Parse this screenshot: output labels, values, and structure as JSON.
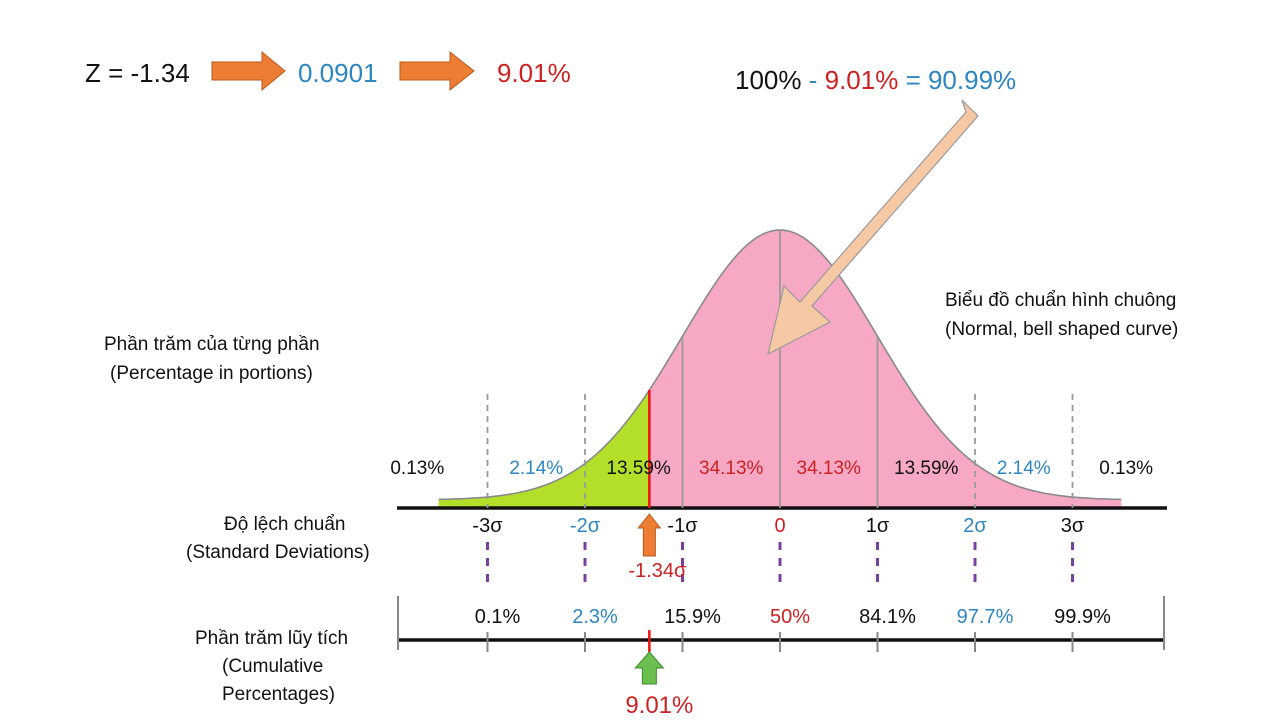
{
  "colors": {
    "black": "#111111",
    "blue": "#2e86c1",
    "red": "#cc2222",
    "pink": "#f7a8c4",
    "green": "#b2e02a",
    "purple": "#7b3fa0",
    "orange": "#ee7d34",
    "peach": "#f6c9a4",
    "arrow_green": "#6bbf4e"
  },
  "top_formula": {
    "z_text": "Z = -1.34",
    "prob_text": "0.0901",
    "percent_text": "9.01%"
  },
  "complement": {
    "part1": "100%",
    "part2": " - ",
    "part3": "9.01%",
    "part4": " = 90.99%"
  },
  "labels": {
    "bell_vi": "Biểu đồ chuẩn hình chuông",
    "bell_en": "(Normal, bell shaped curve)",
    "portion_vi": "Phần trăm của từng phần",
    "portion_en": "(Percentage in portions)",
    "sd_vi": "Độ lệch chuẩn",
    "sd_en": "(Standard Deviations)",
    "cum_vi": "Phần trăm lũy tích",
    "cum_en1": "(Cumulative",
    "cum_en2": "Percentages)"
  },
  "chart_data": {
    "type": "area",
    "distribution": "normal",
    "x_range": [
      -3.5,
      3.5
    ],
    "sd_ticks": [
      {
        "value": -3,
        "label": "-3σ",
        "color": "black"
      },
      {
        "value": -2,
        "label": "-2σ",
        "color": "blue"
      },
      {
        "value": -1,
        "label": "-1σ",
        "color": "black"
      },
      {
        "value": 0,
        "label": "0",
        "color": "red"
      },
      {
        "value": 1,
        "label": "1σ",
        "color": "black"
      },
      {
        "value": 2,
        "label": "2σ",
        "color": "blue"
      },
      {
        "value": 3,
        "label": "3σ",
        "color": "black"
      }
    ],
    "portions": [
      {
        "label": "0.13%",
        "color": "black"
      },
      {
        "label": "2.14%",
        "color": "blue"
      },
      {
        "label": "13.59%",
        "color": "black"
      },
      {
        "label": "34.13%",
        "color": "red"
      },
      {
        "label": "34.13%",
        "color": "red"
      },
      {
        "label": "13.59%",
        "color": "black"
      },
      {
        "label": "2.14%",
        "color": "blue"
      },
      {
        "label": "0.13%",
        "color": "black"
      }
    ],
    "cumulative": [
      {
        "value": -3,
        "label": "0.1%",
        "color": "black"
      },
      {
        "value": -2,
        "label": "2.3%",
        "color": "blue"
      },
      {
        "value": -1,
        "label": "15.9%",
        "color": "black"
      },
      {
        "value": 0,
        "label": "50%",
        "color": "red"
      },
      {
        "value": 1,
        "label": "84.1%",
        "color": "black"
      },
      {
        "value": 2,
        "label": "97.7%",
        "color": "blue"
      },
      {
        "value": 3,
        "label": "99.9%",
        "color": "black"
      }
    ],
    "z_marker": {
      "value": -1.34,
      "label": "-1.34σ",
      "shaded_left_percent": "9.01%"
    }
  }
}
